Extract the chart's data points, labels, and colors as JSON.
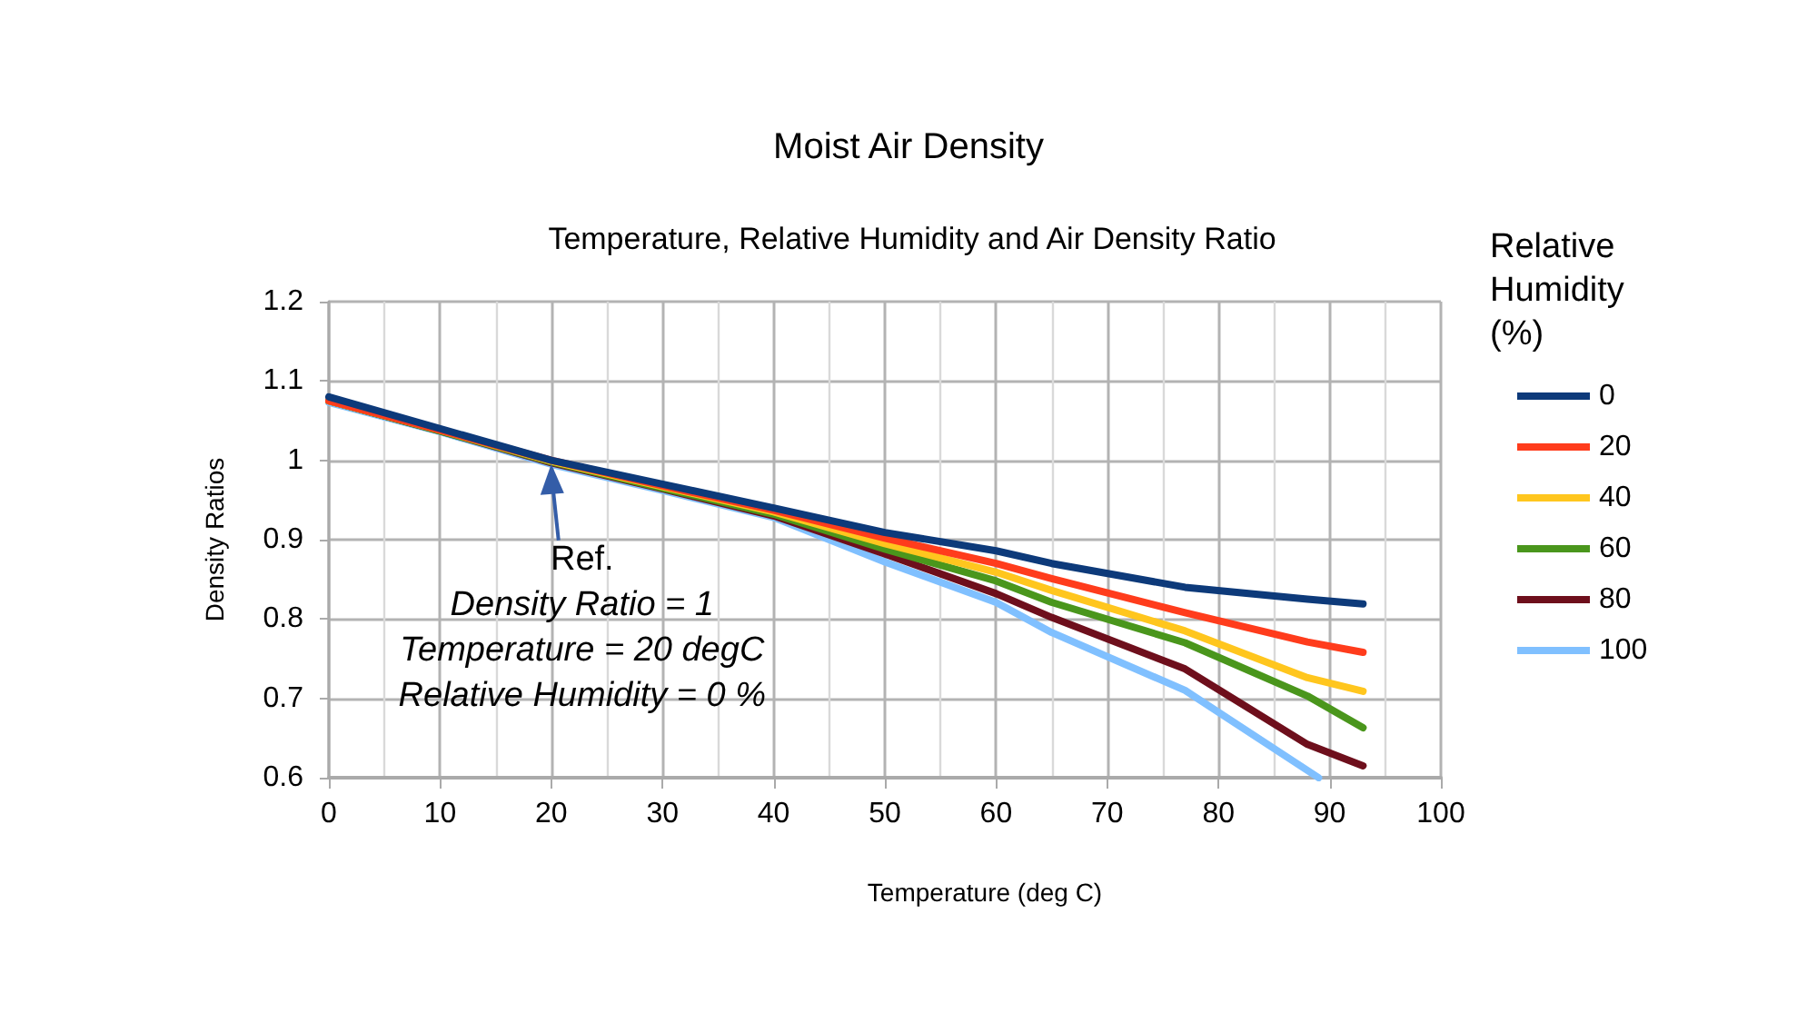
{
  "chart_data": {
    "type": "line",
    "title": "Moist Air Density",
    "subtitle": "Temperature, Relative Humidity and Air Density Ratio",
    "xlabel": "Temperature (deg C)",
    "ylabel": "Density Ratios",
    "legend_title": "Relative Humidity (%)",
    "x": [
      0,
      10,
      20,
      30,
      40,
      50,
      60,
      65,
      77,
      88,
      93
    ],
    "series": [
      {
        "name": "0",
        "color": "#0d3a7a",
        "values": [
          1.08,
          1.04,
          1.0,
          0.97,
          0.94,
          0.909,
          0.886,
          0.87,
          0.84,
          0.825,
          0.819
        ]
      },
      {
        "name": "20",
        "color": "#ff3c1c",
        "values": [
          1.075,
          1.038,
          1.0,
          0.968,
          0.937,
          0.902,
          0.87,
          0.851,
          0.808,
          0.771,
          0.758
        ]
      },
      {
        "name": "40",
        "color": "#ffc61e",
        "values": [
          1.075,
          1.038,
          0.999,
          0.967,
          0.935,
          0.895,
          0.859,
          0.836,
          0.785,
          0.726,
          0.709
        ]
      },
      {
        "name": "60",
        "color": "#4a961c",
        "values": [
          1.075,
          1.037,
          0.998,
          0.965,
          0.932,
          0.888,
          0.848,
          0.821,
          0.77,
          0.703,
          0.663
        ]
      },
      {
        "name": "80",
        "color": "#6e0f1c",
        "values": [
          1.075,
          1.037,
          0.997,
          0.964,
          0.93,
          0.882,
          0.832,
          0.802,
          0.737,
          0.642,
          0.615
        ]
      },
      {
        "name": "100",
        "color": "#80c0ff",
        "x": [
          0,
          10,
          20,
          30,
          40,
          50,
          60,
          65,
          77,
          89
        ],
        "values": [
          1.073,
          1.036,
          0.995,
          0.962,
          0.928,
          0.872,
          0.821,
          0.783,
          0.71,
          0.6
        ]
      }
    ],
    "xlim": [
      0,
      100
    ],
    "xticks": [
      0,
      10,
      20,
      30,
      40,
      50,
      60,
      70,
      80,
      90,
      100
    ],
    "ylim": [
      0.6,
      1.2
    ],
    "yticks": [
      0.6,
      0.7,
      0.8,
      0.9,
      1,
      1.1,
      1.2
    ],
    "annotations": [
      {
        "text": "Ref.\nDensity Ratio = 1\nTemperature = 20 degC\nRelative Humidity = 0 %",
        "x": 20,
        "y": 1
      }
    ],
    "grid": true,
    "legend": "right",
    "marker": "none",
    "line_style": "solid"
  }
}
